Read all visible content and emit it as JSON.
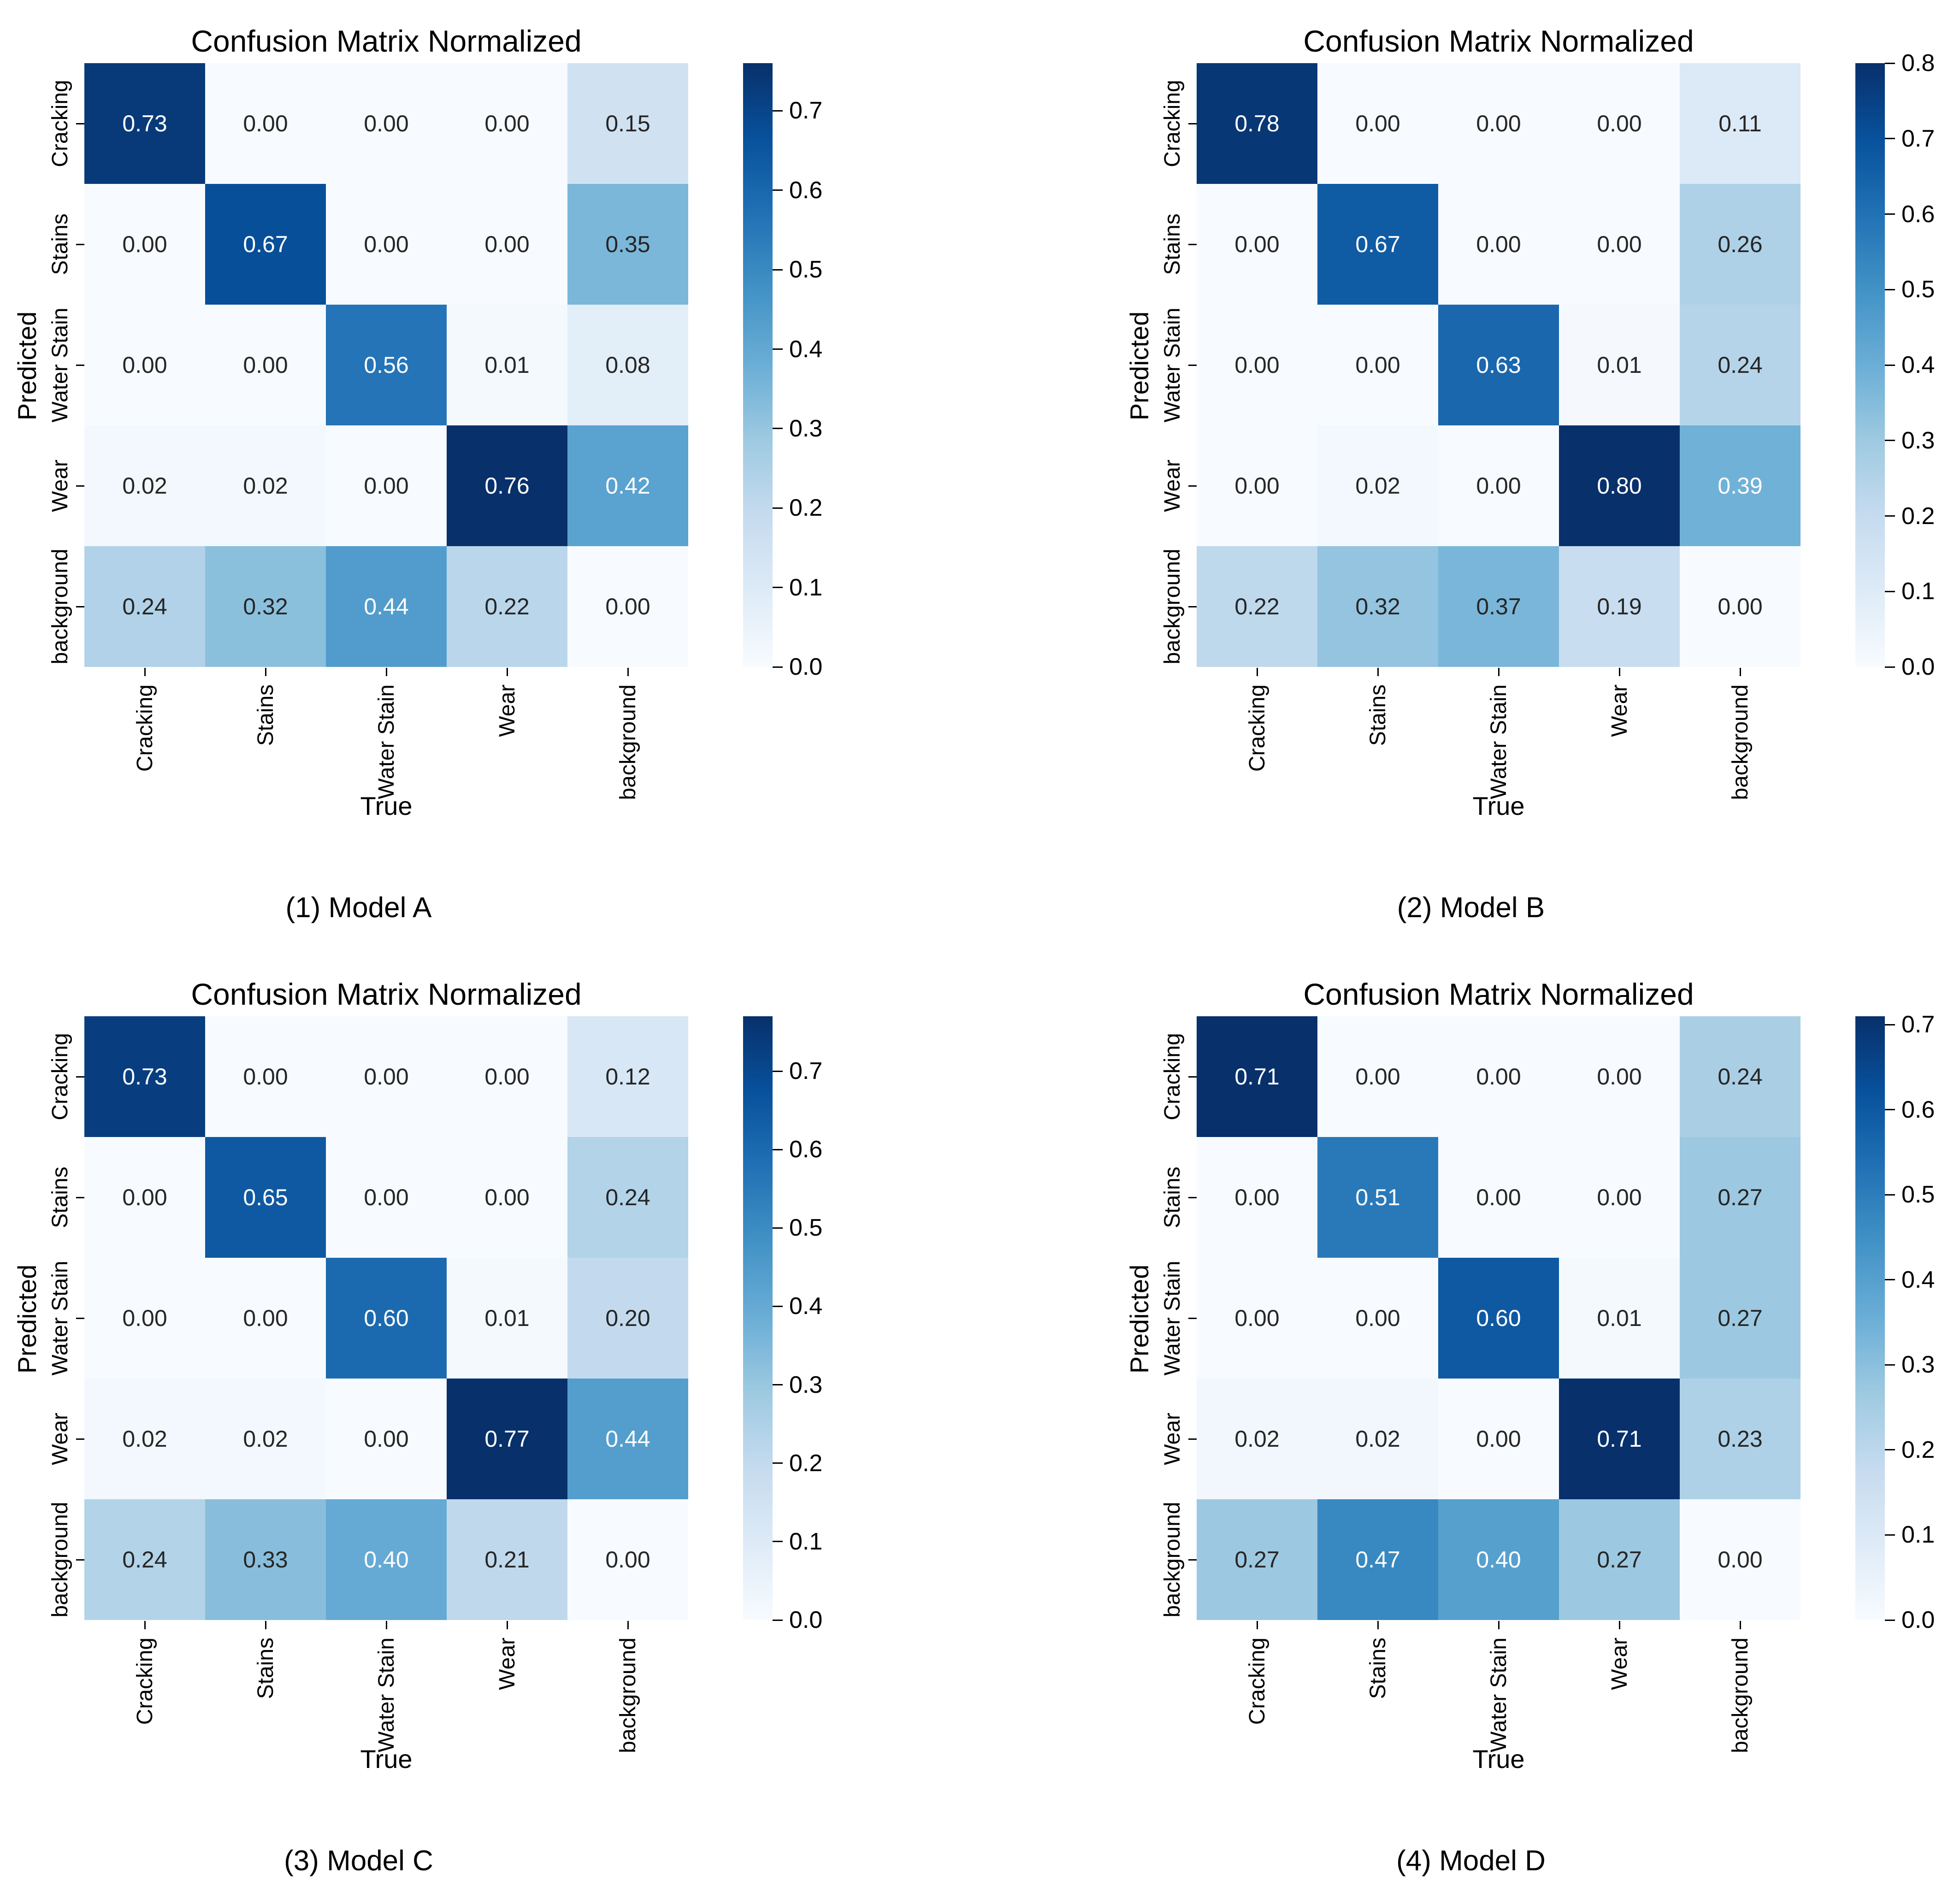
{
  "colors": {
    "background": "#ffffff",
    "text": "#000000",
    "annotation_dark": "#262626",
    "annotation_light": "#ffffff",
    "tick": "#000000"
  },
  "colormap": {
    "name": "Blues",
    "stops": [
      [
        0.0,
        "#f7fbff"
      ],
      [
        0.125,
        "#deebf7"
      ],
      [
        0.25,
        "#c6dbef"
      ],
      [
        0.375,
        "#9ecae1"
      ],
      [
        0.5,
        "#6baed6"
      ],
      [
        0.625,
        "#4292c6"
      ],
      [
        0.75,
        "#2171b5"
      ],
      [
        0.875,
        "#08519c"
      ],
      [
        1.0,
        "#08306b"
      ]
    ]
  },
  "chart_data": [
    {
      "type": "heatmap",
      "title": "Confusion Matrix Normalized",
      "caption": "(1) Model A",
      "xlabel": "True",
      "ylabel": "Predicted",
      "x_ticklabels": [
        "Cracking",
        "Stains",
        "Water Stain",
        "Wear",
        "background"
      ],
      "y_ticklabels": [
        "Cracking",
        "Stains",
        "Water Stain",
        "Wear",
        "background"
      ],
      "values": [
        [
          0.73,
          0.0,
          0.0,
          0.0,
          0.15
        ],
        [
          0.0,
          0.67,
          0.0,
          0.0,
          0.35
        ],
        [
          0.0,
          0.0,
          0.56,
          0.01,
          0.08
        ],
        [
          0.02,
          0.02,
          0.0,
          0.76,
          0.42
        ],
        [
          0.24,
          0.32,
          0.44,
          0.22,
          0.0
        ]
      ],
      "value_format": "0.00",
      "vmin": 0.0,
      "vmax": 0.76,
      "colorbar_ticks": [
        0.0,
        0.1,
        0.2,
        0.3,
        0.4,
        0.5,
        0.6,
        0.7
      ],
      "legend_position": "right-colorbar",
      "grid": false
    },
    {
      "type": "heatmap",
      "title": "Confusion Matrix Normalized",
      "caption": "(2) Model B",
      "xlabel": "True",
      "ylabel": "Predicted",
      "x_ticklabels": [
        "Cracking",
        "Stains",
        "Water Stain",
        "Wear",
        "background"
      ],
      "y_ticklabels": [
        "Cracking",
        "Stains",
        "Water Stain",
        "Wear",
        "background"
      ],
      "values": [
        [
          0.78,
          0.0,
          0.0,
          0.0,
          0.11
        ],
        [
          0.0,
          0.67,
          0.0,
          0.0,
          0.26
        ],
        [
          0.0,
          0.0,
          0.63,
          0.01,
          0.24
        ],
        [
          0.0,
          0.02,
          0.0,
          0.8,
          0.39
        ],
        [
          0.22,
          0.32,
          0.37,
          0.19,
          0.0
        ]
      ],
      "value_format": "0.00",
      "vmin": 0.0,
      "vmax": 0.8,
      "colorbar_ticks": [
        0.0,
        0.1,
        0.2,
        0.3,
        0.4,
        0.5,
        0.6,
        0.7,
        0.8
      ],
      "legend_position": "right-colorbar",
      "grid": false
    },
    {
      "type": "heatmap",
      "title": "Confusion Matrix Normalized",
      "caption": "(3) Model C",
      "xlabel": "True",
      "ylabel": "Predicted",
      "x_ticklabels": [
        "Cracking",
        "Stains",
        "Water Stain",
        "Wear",
        "background"
      ],
      "y_ticklabels": [
        "Cracking",
        "Stains",
        "Water Stain",
        "Wear",
        "background"
      ],
      "values": [
        [
          0.73,
          0.0,
          0.0,
          0.0,
          0.12
        ],
        [
          0.0,
          0.65,
          0.0,
          0.0,
          0.24
        ],
        [
          0.0,
          0.0,
          0.6,
          0.01,
          0.2
        ],
        [
          0.02,
          0.02,
          0.0,
          0.77,
          0.44
        ],
        [
          0.24,
          0.33,
          0.4,
          0.21,
          0.0
        ]
      ],
      "value_format": "0.00",
      "vmin": 0.0,
      "vmax": 0.77,
      "colorbar_ticks": [
        0.0,
        0.1,
        0.2,
        0.3,
        0.4,
        0.5,
        0.6,
        0.7
      ],
      "legend_position": "right-colorbar",
      "grid": false
    },
    {
      "type": "heatmap",
      "title": "Confusion Matrix Normalized",
      "caption": "(4) Model D",
      "xlabel": "True",
      "ylabel": "Predicted",
      "x_ticklabels": [
        "Cracking",
        "Stains",
        "Water Stain",
        "Wear",
        "background"
      ],
      "y_ticklabels": [
        "Cracking",
        "Stains",
        "Water Stain",
        "Wear",
        "background"
      ],
      "values": [
        [
          0.71,
          0.0,
          0.0,
          0.0,
          0.24
        ],
        [
          0.0,
          0.51,
          0.0,
          0.0,
          0.27
        ],
        [
          0.0,
          0.0,
          0.6,
          0.01,
          0.27
        ],
        [
          0.02,
          0.02,
          0.0,
          0.71,
          0.23
        ],
        [
          0.27,
          0.47,
          0.4,
          0.27,
          0.0
        ]
      ],
      "value_format": "0.00",
      "vmin": 0.0,
      "vmax": 0.71,
      "colorbar_ticks": [
        0.0,
        0.1,
        0.2,
        0.3,
        0.4,
        0.5,
        0.6,
        0.7
      ],
      "legend_position": "right-colorbar",
      "grid": false
    }
  ]
}
